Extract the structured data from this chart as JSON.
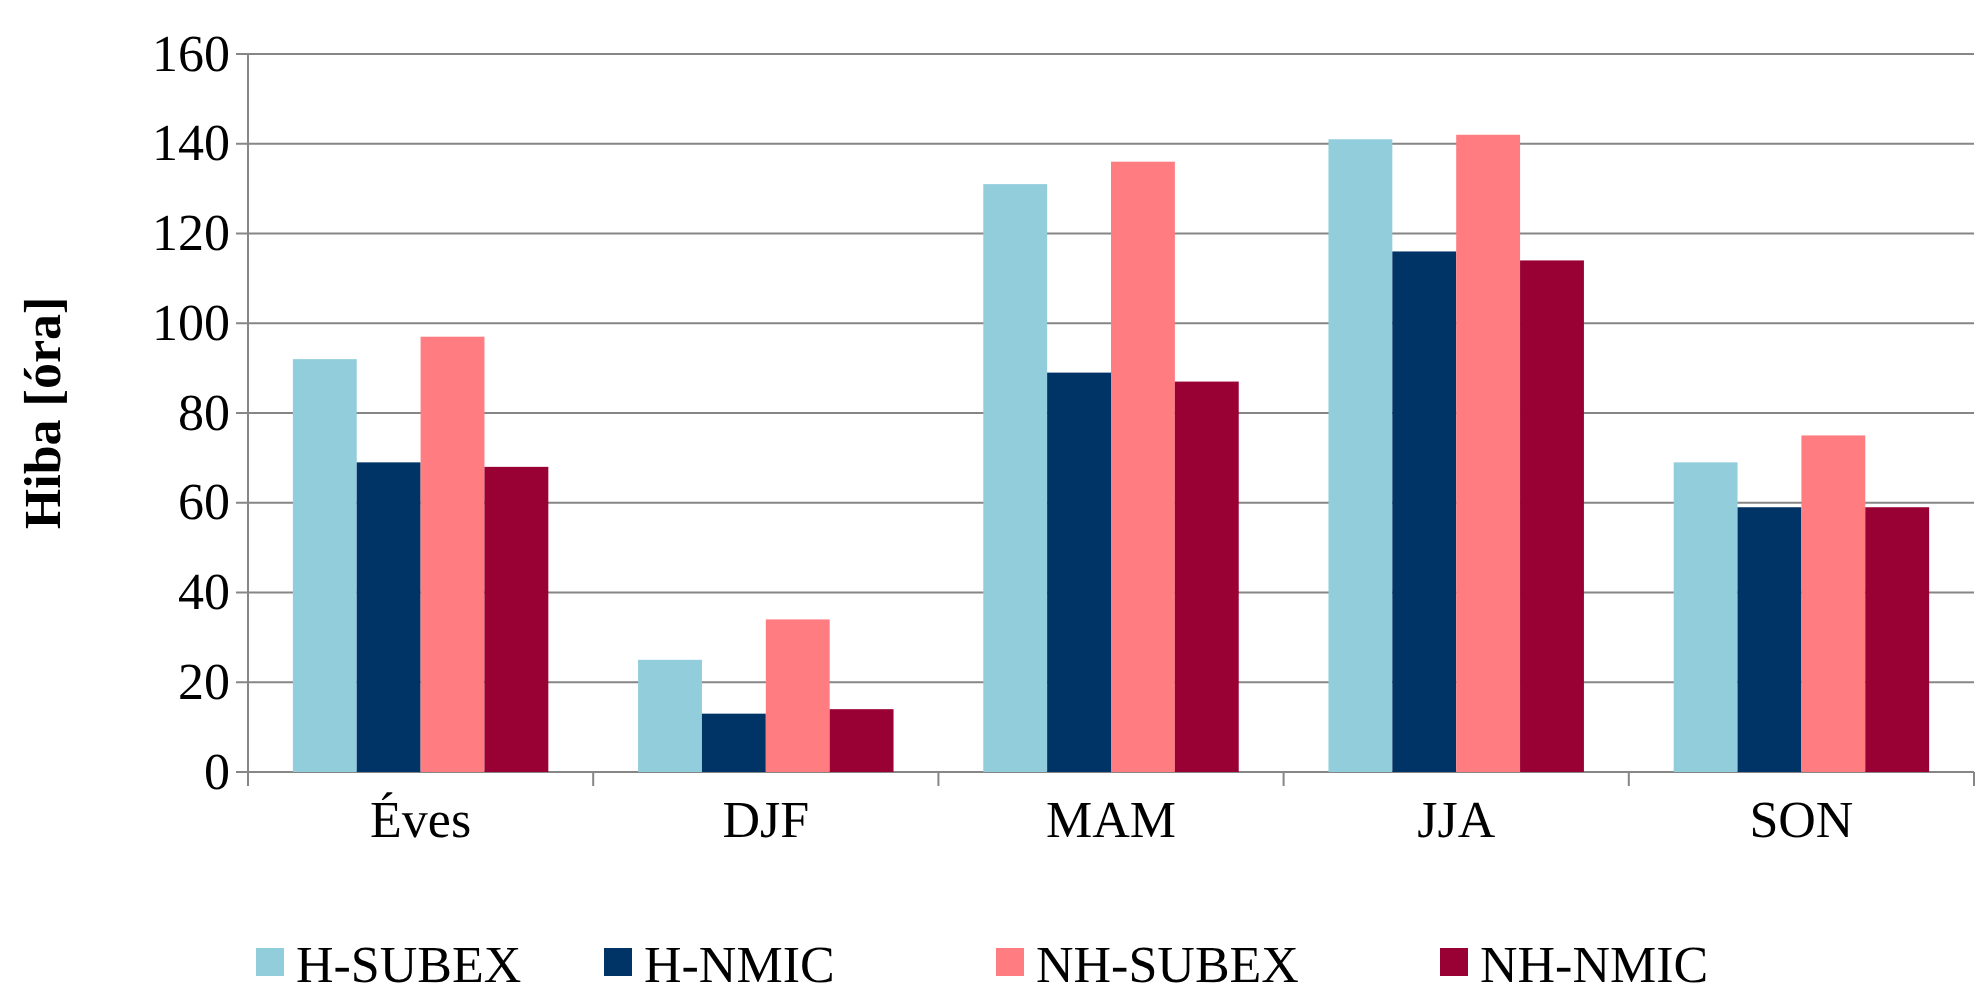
{
  "chart_data": {
    "type": "bar",
    "ylabel": "Hiba [óra]",
    "categories": [
      "Éves",
      "DJF",
      "MAM",
      "JJA",
      "SON"
    ],
    "series": [
      {
        "name": "H-SUBEX",
        "color": "#92cddc",
        "values": [
          92,
          25,
          131,
          141,
          69
        ]
      },
      {
        "name": "H-NMIC",
        "color": "#003366",
        "values": [
          69,
          13,
          89,
          116,
          59
        ]
      },
      {
        "name": "NH-SUBEX",
        "color": "#ff7c80",
        "values": [
          97,
          34,
          136,
          142,
          75
        ]
      },
      {
        "name": "NH-NMIC",
        "color": "#990033",
        "values": [
          68,
          14,
          87,
          114,
          59
        ]
      }
    ],
    "ylim": [
      0,
      160
    ],
    "yticks": [
      0,
      20,
      40,
      60,
      80,
      100,
      120,
      140,
      160
    ],
    "grid": "y",
    "legend": "bottom"
  }
}
